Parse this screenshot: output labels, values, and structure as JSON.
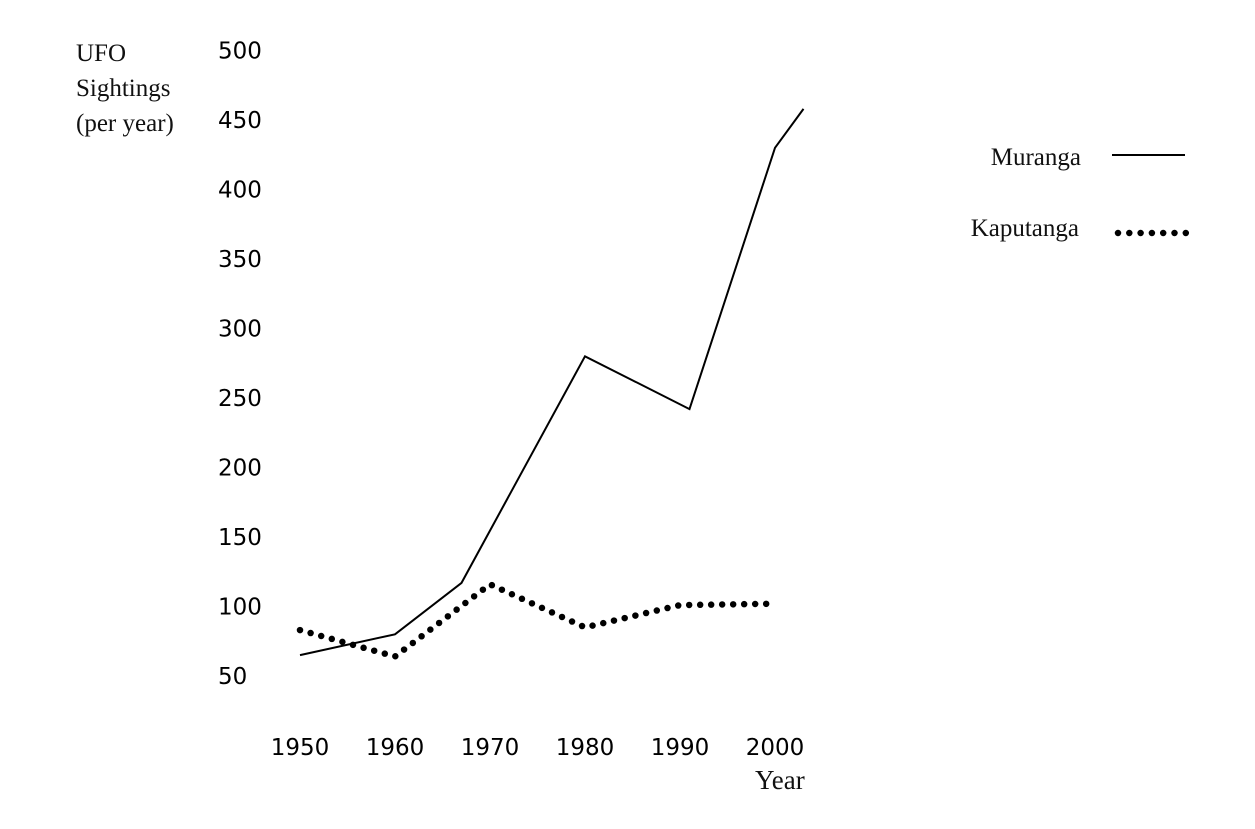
{
  "chart_data": {
    "type": "line",
    "ylabel_lines": [
      "UFO",
      "Sightings",
      "(per year)"
    ],
    "xlabel": "Year",
    "y_ticks": [
      500,
      450,
      400,
      350,
      300,
      250,
      200,
      150,
      100,
      50
    ],
    "x_ticks": [
      1950,
      1960,
      1970,
      1980,
      1990,
      2000
    ],
    "xlim": [
      1950,
      2003
    ],
    "ylim": [
      50,
      500
    ],
    "grid": false,
    "legend_position": "top-right",
    "series": [
      {
        "name": "Muranga",
        "style": "solid",
        "x": [
          1950,
          1960,
          1967,
          1980,
          1991,
          2000,
          2003
        ],
        "y": [
          65,
          80,
          117,
          280,
          242,
          430,
          458
        ]
      },
      {
        "name": "Kaputanga",
        "style": "dotted",
        "x": [
          1950,
          1960,
          1970,
          1980,
          1990,
          2000
        ],
        "y": [
          83,
          64,
          116,
          85,
          101,
          102
        ]
      }
    ]
  }
}
